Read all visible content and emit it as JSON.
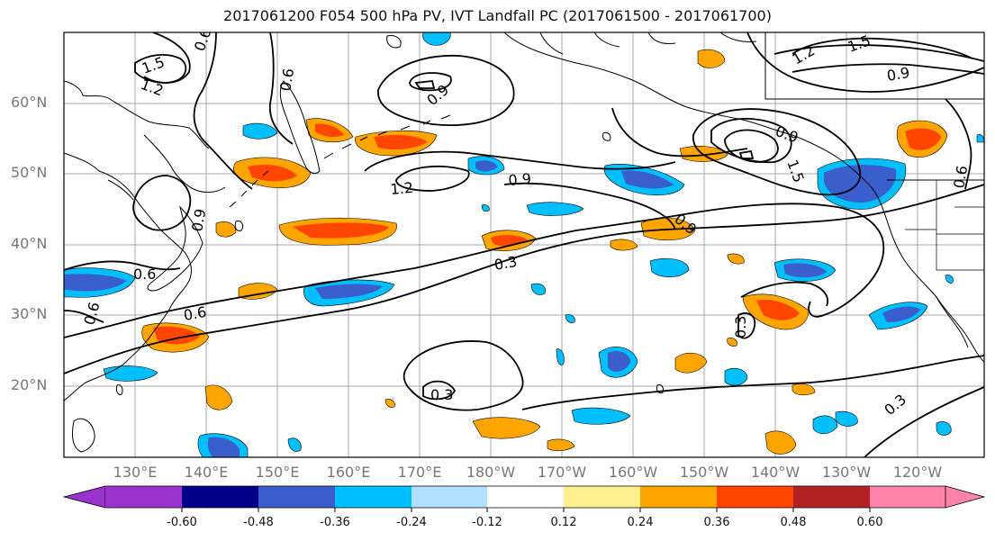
{
  "title": "2017061200 F054 500 hPa PV, IVT Landfall PC (2017061500 - 2017061700)",
  "latitude_labels": [
    "60°N",
    "50°N",
    "40°N",
    "30°N",
    "20°N"
  ],
  "longitude_labels": [
    "130°E",
    "140°E",
    "150°E",
    "160°E",
    "170°E",
    "180°W",
    "170°W",
    "160°W",
    "150°W",
    "140°W",
    "130°W",
    "120°W"
  ],
  "contour_labels": {
    "c06_top": "0.6",
    "c15_nw": "1.5",
    "c12_nw": "1.2",
    "c06_nw": "0.6",
    "c09_low": "0.9",
    "c12_mid": "1.2",
    "c09_mid": "0.9",
    "c09_e": "0.9",
    "c03_mid": "0.3",
    "c06_w": "0.6",
    "c06_w2": "0.6",
    "c06_w3": "0.6",
    "c03_s": "0.3",
    "c03_se": "0.3",
    "c03_e": "0.3",
    "c12_ne": "1.2",
    "c15_ne": "1.5",
    "c09_ne": "0.9",
    "c09_gulf": "0.9",
    "c15_gulf": "1.5",
    "c09_gulf2": "0.9",
    "c06_ne": "0.6"
  },
  "colorbar": {
    "ticks": [
      "-0.60",
      "-0.48",
      "-0.36",
      "-0.24",
      "-0.12",
      "0.12",
      "0.24",
      "0.36",
      "0.48",
      "0.60"
    ],
    "colors": [
      "#9a32cd",
      "#00008b",
      "#3a5fcd",
      "#00bfff",
      "#b0e2ff",
      "#ffffff",
      "#fff08f",
      "#ffa500",
      "#ff4500",
      "#b22222",
      "#ff83aa"
    ]
  }
}
